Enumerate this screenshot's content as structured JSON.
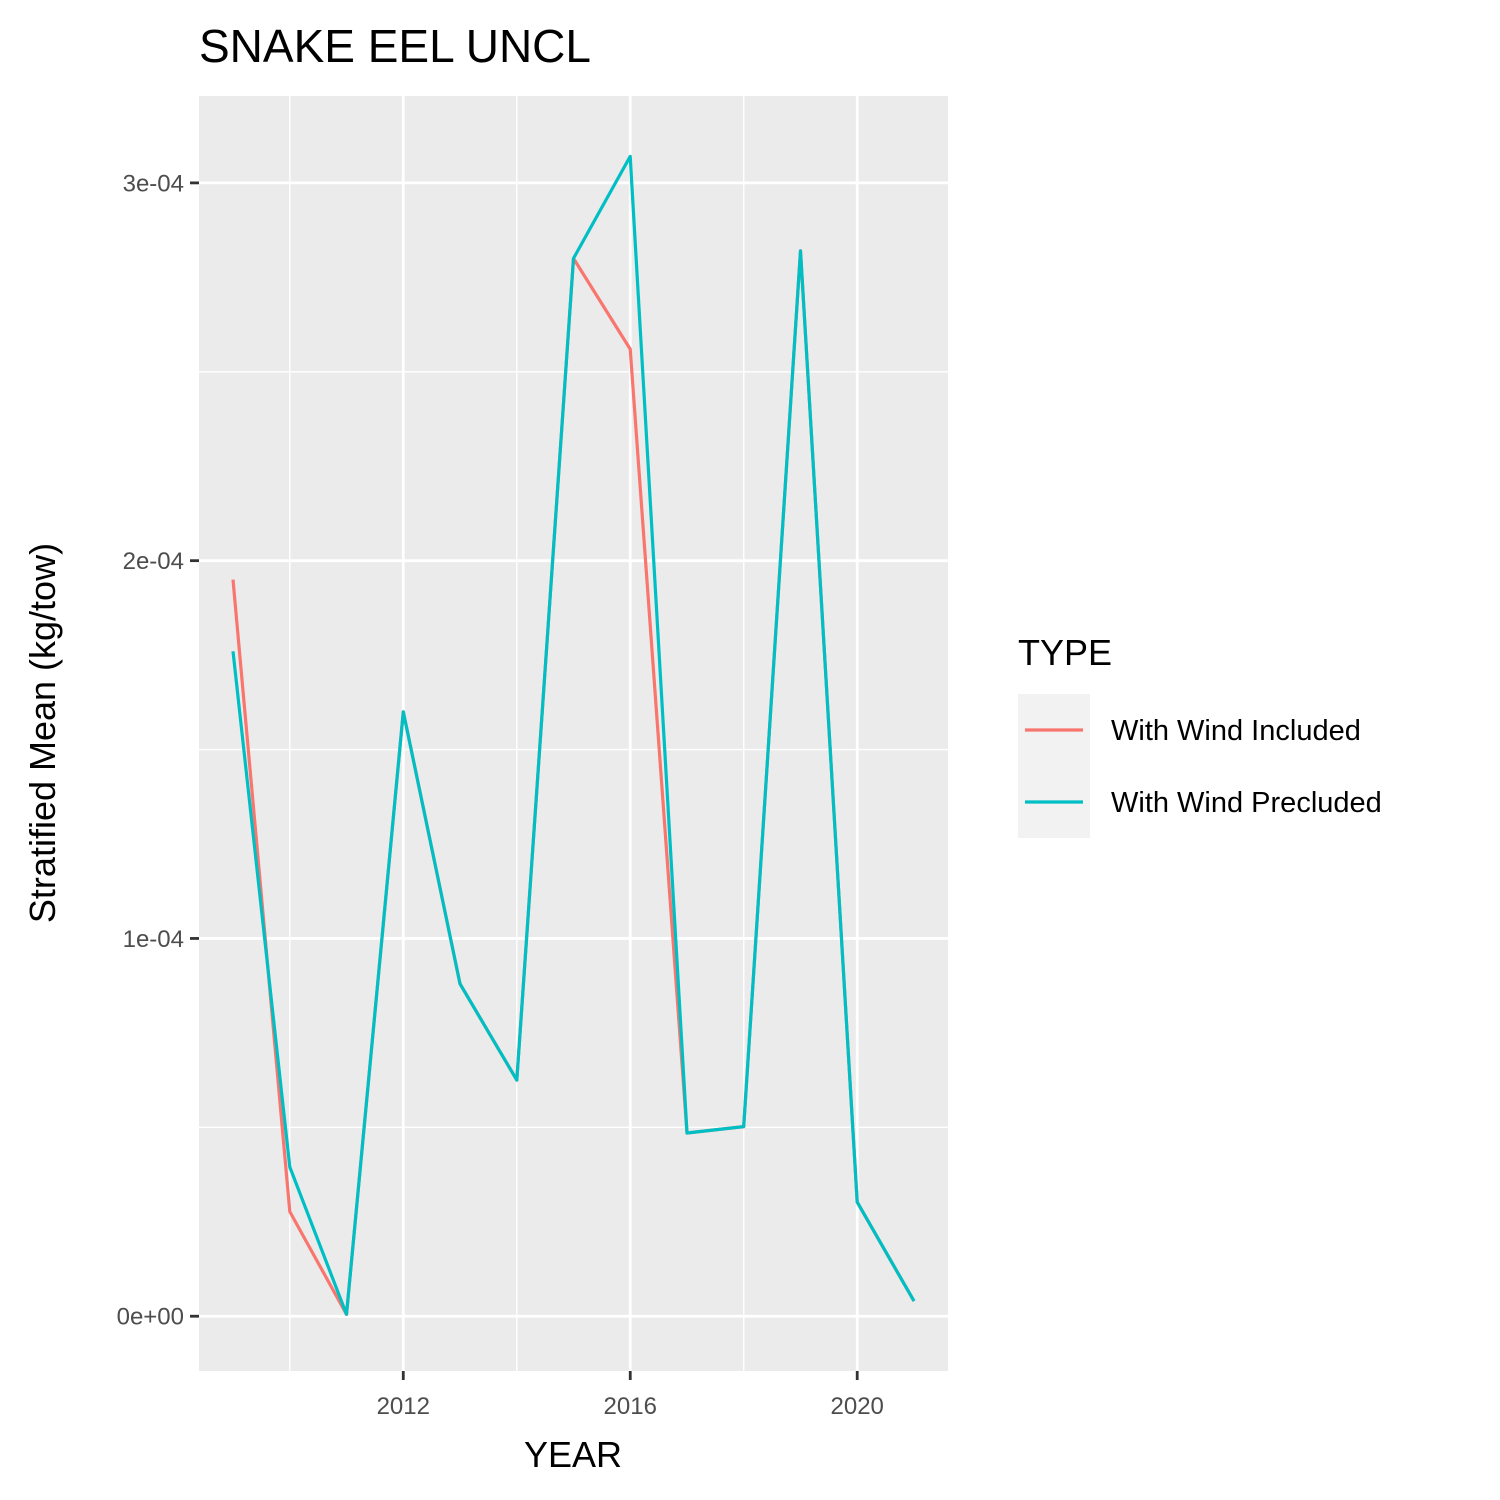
{
  "chart_data": {
    "type": "line",
    "title": "SNAKE EEL UNCL",
    "xlabel": "YEAR",
    "ylabel": "Stratified Mean (kg/tow)",
    "xlim": [
      2008.4,
      2021.6
    ],
    "ylim": [
      -1.45e-05,
      0.000323
    ],
    "x_ticks": [
      2012,
      2016,
      2020
    ],
    "x_tick_labels": [
      "2012",
      "2016",
      "2020"
    ],
    "x_minor_ticks": [
      2010,
      2014,
      2018
    ],
    "y_ticks": [
      0,
      0.0001,
      0.0002,
      0.0003
    ],
    "y_tick_labels": [
      "0e+00",
      "1e-04",
      "2e-04",
      "3e-04"
    ],
    "y_minor_ticks": [
      5e-05,
      0.00015,
      0.00025
    ],
    "grid": true,
    "background": "#ebebeb",
    "legend": {
      "title": "TYPE",
      "position": "right"
    },
    "x": [
      2009,
      2010,
      2011,
      2012,
      2013,
      2014,
      2015,
      2016,
      2017,
      2018,
      2019,
      2020,
      2021
    ],
    "series": [
      {
        "name": "With Wind Included",
        "color": "#F8766D",
        "values": [
          0.000195,
          2.77e-05,
          5e-07,
          0.00016,
          8.8e-05,
          6.25e-05,
          0.00028,
          0.000256,
          4.85e-05,
          5.02e-05,
          0.000282,
          3.02e-05,
          4e-06
        ]
      },
      {
        "name": "With Wind Precluded",
        "color": "#00BFC4",
        "values": [
          0.000176,
          3.95e-05,
          5e-07,
          0.00016,
          8.8e-05,
          6.25e-05,
          0.00028,
          0.000307,
          4.85e-05,
          5.02e-05,
          0.000282,
          3.02e-05,
          4e-06
        ]
      }
    ]
  }
}
